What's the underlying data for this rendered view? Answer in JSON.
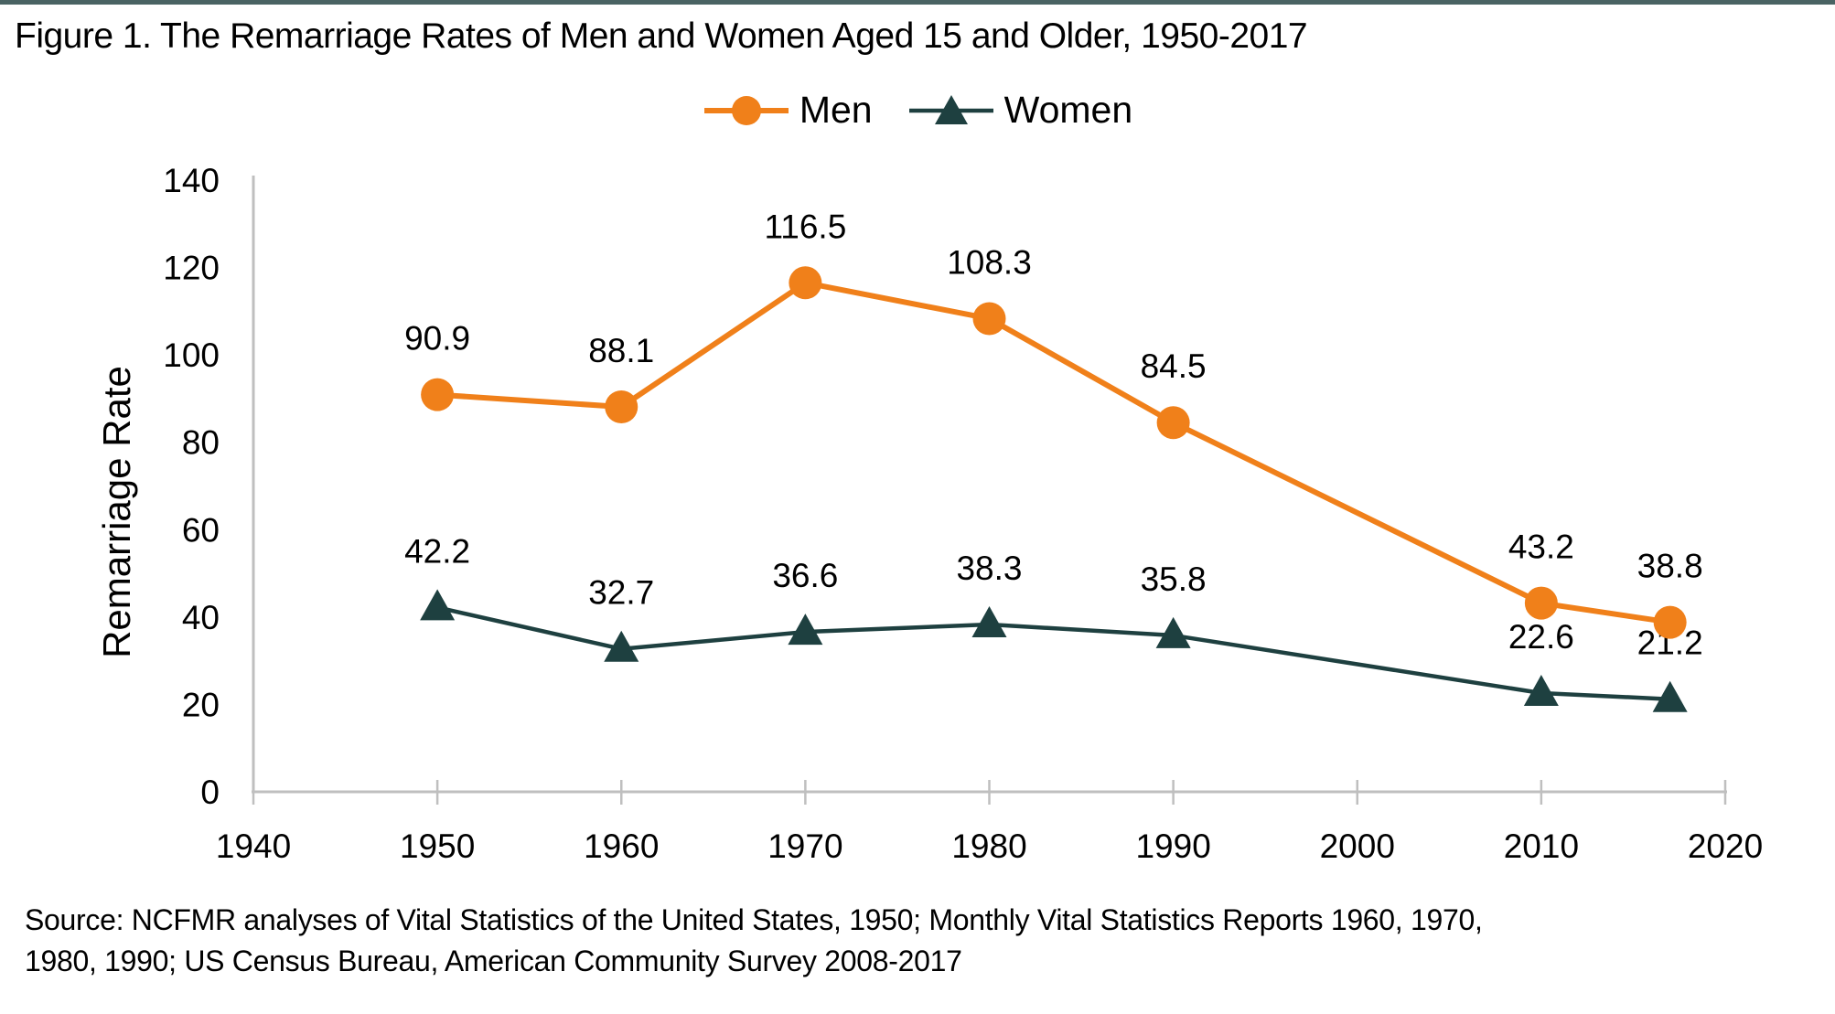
{
  "page": {
    "title": "Figure 1. The Remarriage Rates of Men and Women Aged 15 and Older, 1950-2017",
    "source_line1": "Source: NCFMR analyses of Vital Statistics of the United States, 1950; Monthly Vital Statistics Reports 1960, 1970,",
    "source_line2": "1980, 1990; US Census Bureau, American Community Survey 2008-2017"
  },
  "chart_data": {
    "type": "line",
    "title": "Figure 1. The Remarriage Rates of Men and Women Aged 15 and Older, 1950-2017",
    "xlabel": "",
    "ylabel": "Remarriage Rate",
    "ylim": [
      0,
      140
    ],
    "ytick_step": 20,
    "xlim": [
      1940,
      2020
    ],
    "xticks": [
      1940,
      1950,
      1960,
      1970,
      1980,
      1990,
      2000,
      2010,
      2020
    ],
    "x": [
      1950,
      1960,
      1970,
      1980,
      1990,
      2010,
      2017
    ],
    "series": [
      {
        "name": "Men",
        "marker": "circle",
        "color": "#F0801A",
        "values": [
          90.9,
          88.1,
          116.5,
          108.3,
          84.5,
          43.2,
          38.8
        ]
      },
      {
        "name": "Women",
        "marker": "triangle",
        "color": "#1E4040",
        "values": [
          42.2,
          32.7,
          36.6,
          38.3,
          35.8,
          22.6,
          21.2
        ]
      }
    ],
    "grid": false,
    "legend_position": "top-center",
    "data_labels": true,
    "axis_color": "#BFBFBF",
    "label_color": "#000000",
    "top_rule_color": "#4A6363"
  }
}
